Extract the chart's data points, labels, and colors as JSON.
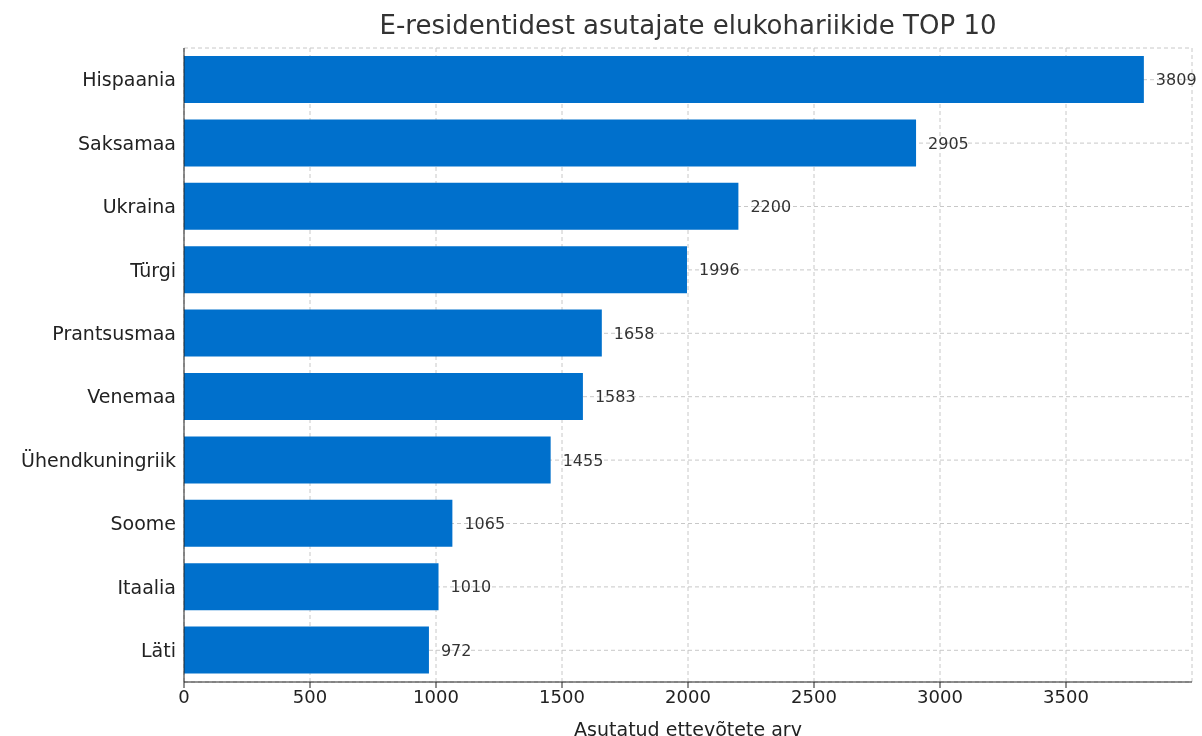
{
  "chart_data": {
    "type": "bar",
    "orientation": "horizontal",
    "title": "E-residentidest asutajate elukohariikide TOP 10",
    "xlabel": "Asutatud ettevõtete arv",
    "categories": [
      "Hispaania",
      "Saksamaa",
      "Ukraina",
      "Türgi",
      "Prantsusmaa",
      "Venemaa",
      "Ühendkuningriik",
      "Soome",
      "Itaalia",
      "Läti"
    ],
    "values": [
      3809,
      2905,
      2200,
      1996,
      1658,
      1583,
      1455,
      1065,
      1010,
      972
    ],
    "color": "#0070cc",
    "xlim": [
      0,
      4000
    ],
    "xticks": [
      0,
      500,
      1000,
      1500,
      2000,
      2500,
      3000,
      3500
    ],
    "grid": true,
    "data_labels": true
  }
}
